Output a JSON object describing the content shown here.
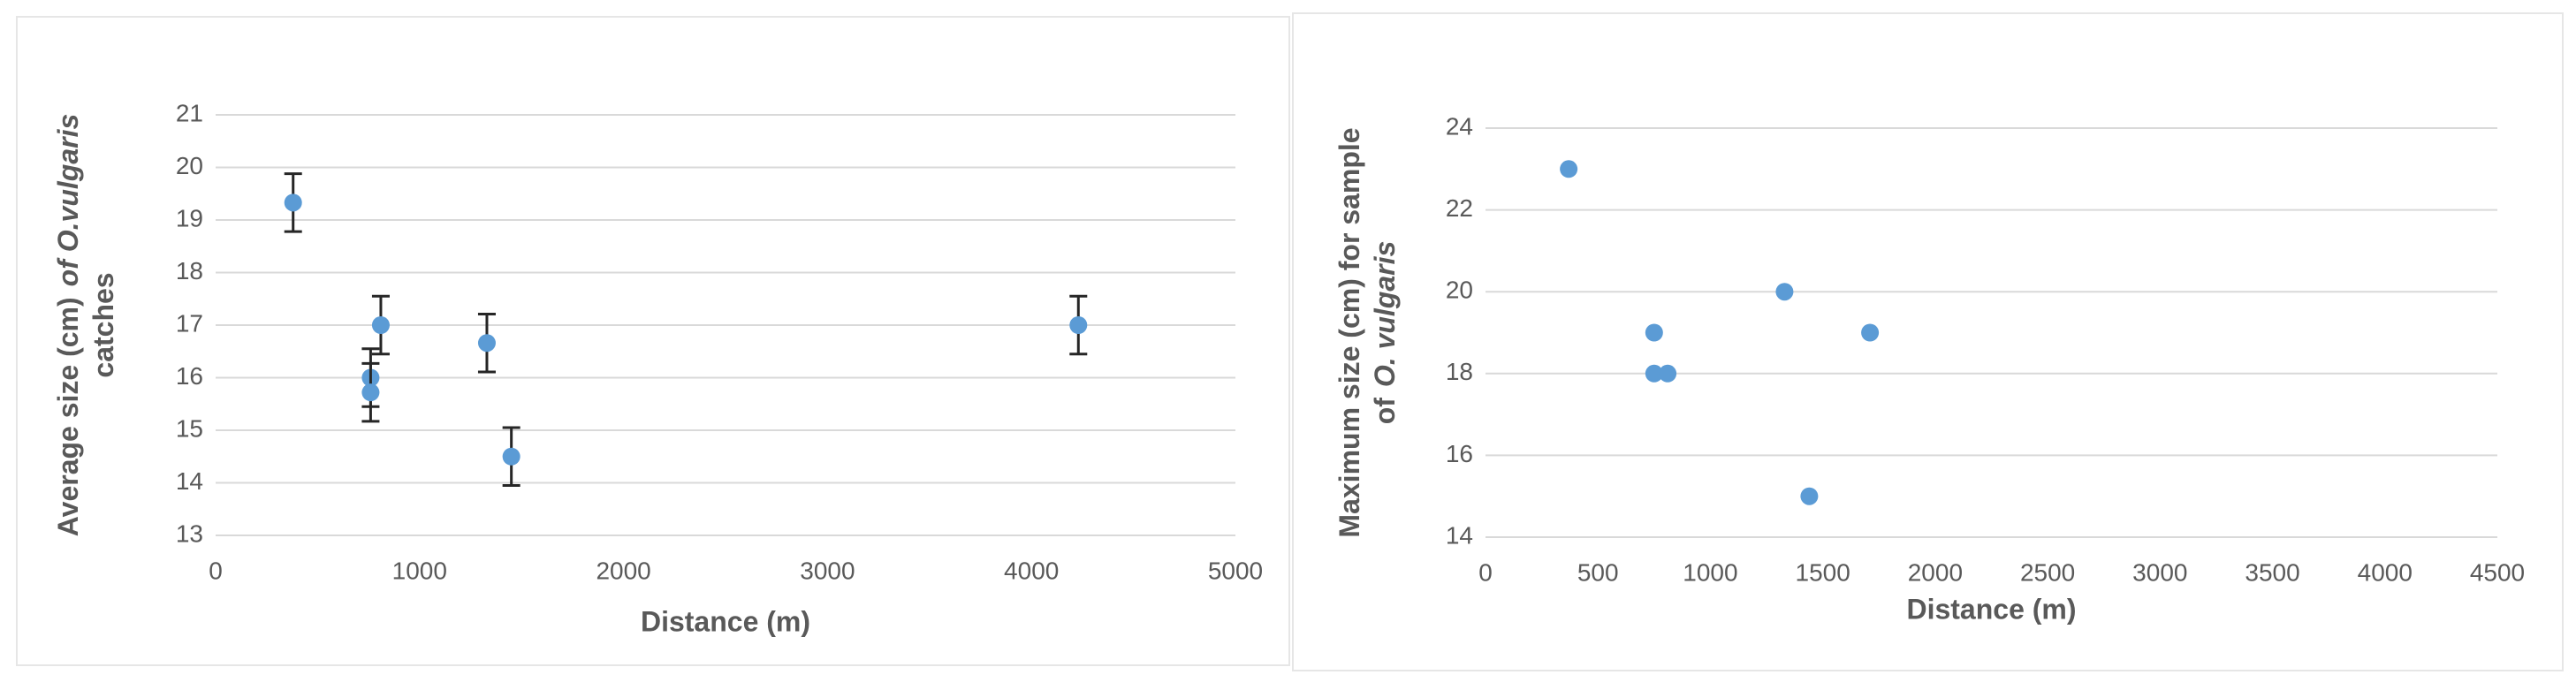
{
  "chart_data": [
    {
      "type": "scatter",
      "x_label": "Distance (m)",
      "y_label": [
        [
          "Average size (cm)",
          "of O.vulgaris"
        ],
        [
          "catches"
        ]
      ],
      "xlim": [
        0,
        5000
      ],
      "xticks": [
        0,
        1000,
        2000,
        3000,
        4000,
        5000
      ],
      "ylim": [
        13,
        21
      ],
      "yticks": [
        13,
        14,
        15,
        16,
        17,
        18,
        19,
        20,
        21
      ],
      "grid": true,
      "series": [
        {
          "color": "#5b9bd5",
          "x": [
            380,
            760,
            760,
            810,
            1330,
            1450,
            4230
          ],
          "values": [
            19.33,
            16.0,
            15.72,
            17.0,
            16.66,
            14.5,
            17.0
          ],
          "errors": [
            0.55,
            0.55,
            0.55,
            0.55,
            0.55,
            0.55,
            0.55
          ]
        }
      ]
    },
    {
      "type": "scatter",
      "x_label": "Distance (m)",
      "y_label": [
        [
          "Maximum size (cm) for sample"
        ],
        [
          "of",
          "O. vulgaris"
        ]
      ],
      "xlim": [
        0,
        4500
      ],
      "xticks": [
        0,
        500,
        1000,
        1500,
        2000,
        2500,
        3000,
        3500,
        4000,
        4500
      ],
      "ylim": [
        14,
        24
      ],
      "yticks": [
        14,
        16,
        18,
        20,
        22,
        24
      ],
      "grid": true,
      "series": [
        {
          "color": "#5b9bd5",
          "x": [
            370,
            750,
            750,
            810,
            1330,
            1440,
            1710
          ],
          "values": [
            23,
            19,
            18,
            18,
            20,
            15,
            19
          ]
        }
      ]
    }
  ]
}
